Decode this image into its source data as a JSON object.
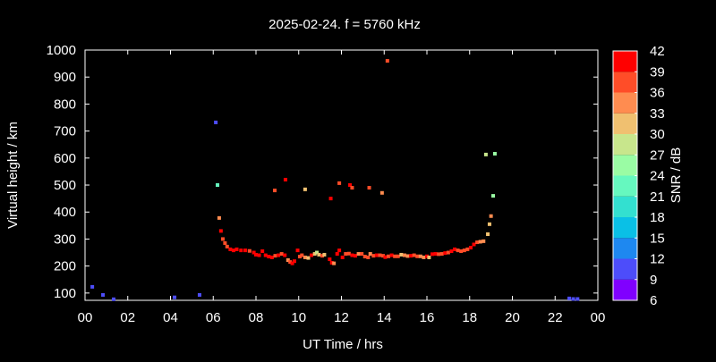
{
  "chart_data": {
    "type": "scatter",
    "title": "2025-02-24. f = 5760 kHz",
    "xlabel": "UT Time / hrs",
    "ylabel": "Virtual height / km",
    "colorbar_label": "SNR / dB",
    "xlim": [
      0,
      24
    ],
    "ylim": [
      73,
      1000
    ],
    "x_ticks": [
      "00",
      "02",
      "04",
      "06",
      "08",
      "10",
      "12",
      "14",
      "16",
      "18",
      "20",
      "22",
      "00"
    ],
    "y_ticks": [
      100,
      200,
      300,
      400,
      500,
      600,
      700,
      800,
      900,
      1000
    ],
    "colorbar_ticks": [
      6,
      9,
      12,
      15,
      18,
      21,
      24,
      27,
      30,
      33,
      36,
      39,
      42
    ],
    "colorbar_colors": [
      "#8000ff",
      "#4d4dfa",
      "#1e88f0",
      "#0ac0e6",
      "#33e0d0",
      "#66f8bf",
      "#9afca4",
      "#c8e68c",
      "#f0c070",
      "#ff8c50",
      "#ff4d28",
      "#ff0000"
    ],
    "grid": false,
    "points_columns": [
      "hour",
      "virtual_height_km",
      "snr_db"
    ],
    "points": [
      [
        0.34,
        123,
        10
      ],
      [
        0.84,
        93,
        10
      ],
      [
        1.34,
        77,
        10
      ],
      [
        4.19,
        84,
        10
      ],
      [
        5.36,
        93,
        10
      ],
      [
        6.12,
        732,
        11
      ],
      [
        6.2,
        500,
        22
      ],
      [
        6.28,
        378,
        34
      ],
      [
        6.36,
        330,
        40
      ],
      [
        6.45,
        300,
        38
      ],
      [
        6.55,
        285,
        38
      ],
      [
        6.65,
        272,
        37
      ],
      [
        6.8,
        262,
        40
      ],
      [
        6.95,
        258,
        40
      ],
      [
        7.1,
        262,
        39
      ],
      [
        7.3,
        258,
        39
      ],
      [
        7.5,
        258,
        40
      ],
      [
        7.7,
        256,
        38
      ],
      [
        7.9,
        250,
        40
      ],
      [
        8.0,
        242,
        41
      ],
      [
        8.15,
        240,
        40
      ],
      [
        8.3,
        255,
        39
      ],
      [
        8.45,
        240,
        40
      ],
      [
        8.6,
        235,
        40
      ],
      [
        8.75,
        232,
        40
      ],
      [
        8.9,
        238,
        37
      ],
      [
        9.05,
        240,
        40
      ],
      [
        9.2,
        245,
        37
      ],
      [
        9.35,
        240,
        40
      ],
      [
        9.5,
        222,
        35
      ],
      [
        9.6,
        215,
        38
      ],
      [
        9.7,
        210,
        40
      ],
      [
        9.8,
        218,
        40
      ],
      [
        9.95,
        258,
        42
      ],
      [
        10.05,
        235,
        37
      ],
      [
        10.15,
        240,
        36
      ],
      [
        10.3,
        232,
        35
      ],
      [
        10.45,
        230,
        32
      ],
      [
        10.6,
        240,
        39
      ],
      [
        10.75,
        245,
        31
      ],
      [
        10.85,
        250,
        29
      ],
      [
        10.95,
        242,
        32
      ],
      [
        11.1,
        238,
        38
      ],
      [
        11.2,
        242,
        32
      ],
      [
        11.45,
        225,
        40
      ],
      [
        11.55,
        212,
        41
      ],
      [
        11.65,
        210,
        33
      ],
      [
        11.8,
        245,
        42
      ],
      [
        11.9,
        258,
        40
      ],
      [
        12.05,
        232,
        40
      ],
      [
        12.2,
        245,
        38
      ],
      [
        12.35,
        246,
        36
      ],
      [
        12.5,
        240,
        40
      ],
      [
        12.65,
        238,
        39
      ],
      [
        12.8,
        245,
        33
      ],
      [
        12.95,
        245,
        38
      ],
      [
        13.1,
        235,
        38
      ],
      [
        13.25,
        232,
        37
      ],
      [
        13.35,
        245,
        33
      ],
      [
        13.5,
        238,
        38
      ],
      [
        13.65,
        240,
        40
      ],
      [
        13.8,
        240,
        38
      ],
      [
        13.95,
        238,
        36
      ],
      [
        14.05,
        233,
        40
      ],
      [
        14.2,
        236,
        38
      ],
      [
        14.35,
        240,
        40
      ],
      [
        14.5,
        236,
        36
      ],
      [
        14.65,
        236,
        38
      ],
      [
        14.8,
        242,
        30
      ],
      [
        14.95,
        240,
        33
      ],
      [
        15.1,
        237,
        33
      ],
      [
        15.25,
        238,
        39
      ],
      [
        15.4,
        240,
        36
      ],
      [
        15.55,
        236,
        38
      ],
      [
        15.7,
        236,
        33
      ],
      [
        15.85,
        232,
        33
      ],
      [
        16.0,
        236,
        40
      ],
      [
        16.1,
        232,
        32
      ],
      [
        16.25,
        244,
        41
      ],
      [
        16.4,
        245,
        40
      ],
      [
        16.55,
        244,
        36
      ],
      [
        16.7,
        245,
        38
      ],
      [
        16.85,
        248,
        40
      ],
      [
        17.0,
        250,
        38
      ],
      [
        17.15,
        255,
        40
      ],
      [
        17.3,
        262,
        40
      ],
      [
        17.45,
        258,
        38
      ],
      [
        17.6,
        255,
        36
      ],
      [
        17.75,
        258,
        36
      ],
      [
        17.9,
        262,
        38
      ],
      [
        18.05,
        268,
        40
      ],
      [
        18.2,
        280,
        40
      ],
      [
        18.35,
        288,
        36
      ],
      [
        18.5,
        290,
        34
      ],
      [
        18.65,
        292,
        34
      ],
      [
        18.85,
        318,
        32
      ],
      [
        18.93,
        355,
        32
      ],
      [
        19.0,
        385,
        33
      ],
      [
        19.1,
        460,
        24
      ],
      [
        18.76,
        613,
        29
      ],
      [
        19.18,
        616,
        25
      ],
      [
        8.88,
        480,
        38
      ],
      [
        9.38,
        520,
        41
      ],
      [
        10.3,
        484,
        32
      ],
      [
        11.5,
        450,
        41
      ],
      [
        11.9,
        507,
        38
      ],
      [
        12.4,
        500,
        41
      ],
      [
        12.5,
        490,
        36
      ],
      [
        13.3,
        490,
        38
      ],
      [
        13.9,
        471,
        35
      ],
      [
        14.15,
        960,
        38
      ],
      [
        22.66,
        80,
        10
      ],
      [
        22.85,
        78,
        10
      ],
      [
        23.05,
        78,
        10
      ]
    ]
  }
}
